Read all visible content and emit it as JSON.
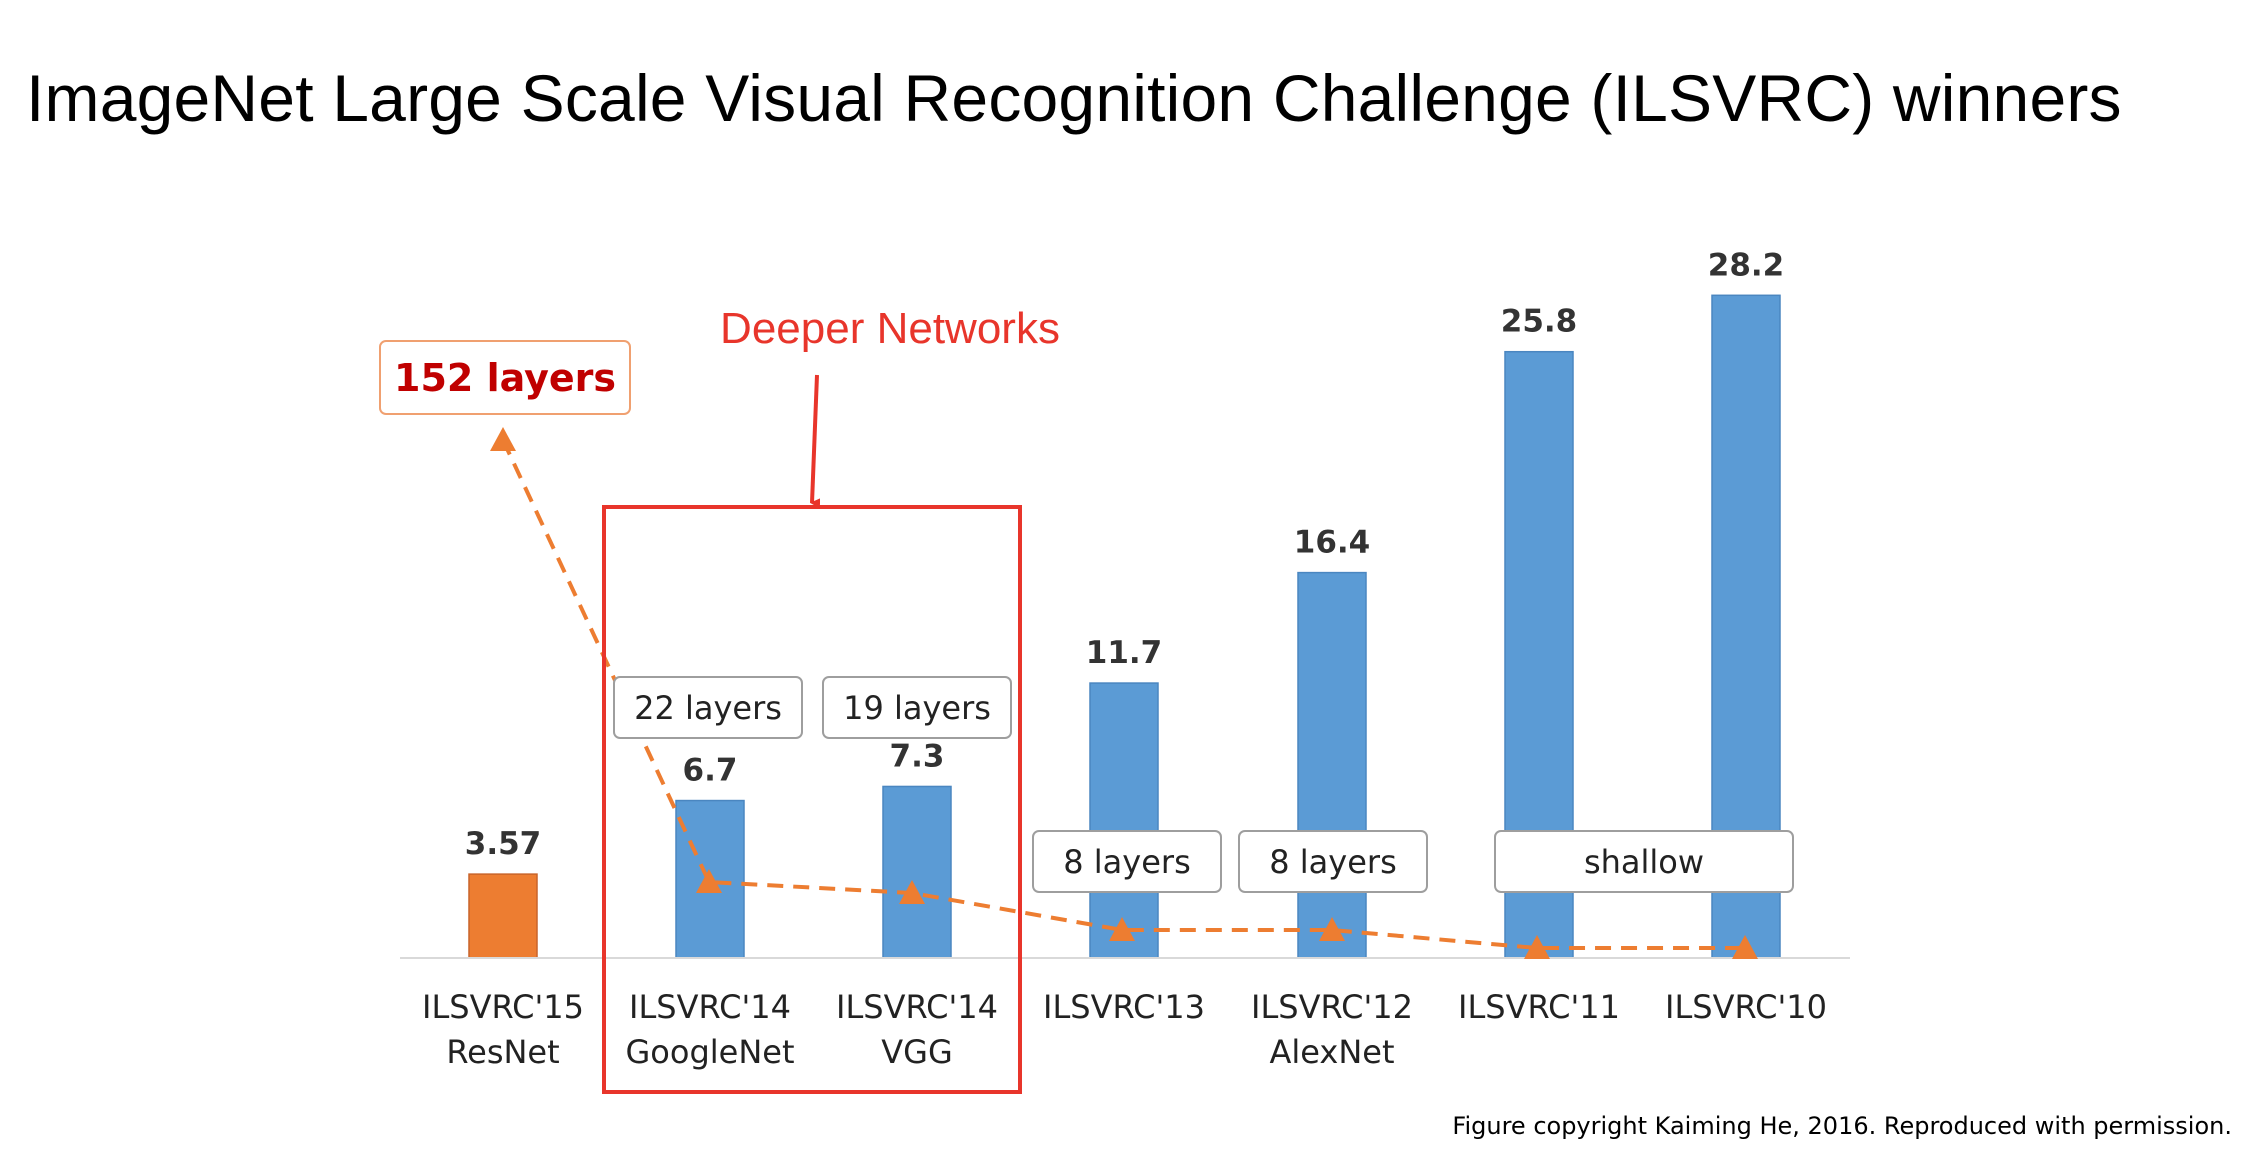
{
  "title": "ImageNet Large Scale Visual Recognition Challenge (ILSVRC) winners",
  "credit": "Figure copyright Kaiming He, 2016. Reproduced with permission.",
  "highlight_label": "Deeper Networks",
  "colors": {
    "bar": "#5b9bd5",
    "highlight_bar": "#ed7d31",
    "trend": "#ed7d31",
    "annotation": "#e8352b",
    "resnet_label": "#c00000"
  },
  "chart_data": {
    "type": "bar",
    "categories": [
      {
        "line1": "ILSVRC'15",
        "line2": "ResNet"
      },
      {
        "line1": "ILSVRC'14",
        "line2": "GoogleNet"
      },
      {
        "line1": "ILSVRC'14",
        "line2": "VGG"
      },
      {
        "line1": "ILSVRC'13",
        "line2": ""
      },
      {
        "line1": "ILSVRC'12",
        "line2": "AlexNet"
      },
      {
        "line1": "ILSVRC'11",
        "line2": ""
      },
      {
        "line1": "ILSVRC'10",
        "line2": ""
      }
    ],
    "values": [
      3.57,
      6.7,
      7.3,
      11.7,
      16.4,
      25.8,
      28.2
    ],
    "value_labels": [
      "3.57",
      "6.7",
      "7.3",
      "11.7",
      "16.4",
      "25.8",
      "28.2"
    ],
    "layer_labels": [
      "152 layers",
      "22 layers",
      "19 layers",
      "8 layers",
      "8 layers",
      "shallow",
      "shallow"
    ],
    "highlighted_index": 0,
    "legend": "none"
  }
}
